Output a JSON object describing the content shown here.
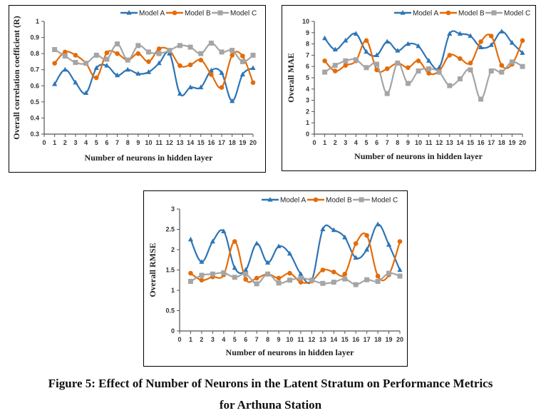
{
  "colors": {
    "model_a": "#2e75b6",
    "model_b": "#e36c0a",
    "model_c": "#a5a5a5"
  },
  "chart_data": [
    {
      "type": "line",
      "title": "",
      "xlabel": "Number of neurons in hidden layer",
      "ylabel": "Overall correlation coefficient (R)",
      "xlim": [
        0,
        20
      ],
      "ylim": [
        0.3,
        1
      ],
      "xticks": [
        "0",
        "1",
        "2",
        "3",
        "4",
        "5",
        "6",
        "7",
        "8",
        "9",
        "10",
        "11",
        "12",
        "13",
        "14",
        "15",
        "16",
        "17",
        "18",
        "19",
        "20"
      ],
      "yticks": [
        "0.3",
        "0.4",
        "0.5",
        "0.6",
        "0.7",
        "0.8",
        "0.9",
        "1"
      ],
      "legend_position": "top-right",
      "grid": false,
      "x": [
        1,
        2,
        3,
        4,
        5,
        6,
        7,
        8,
        9,
        10,
        11,
        12,
        13,
        14,
        15,
        16,
        17,
        18,
        19,
        20
      ],
      "series": [
        {
          "name": "Model A",
          "marker": "triangle",
          "values": [
            0.61,
            0.7,
            0.62,
            0.555,
            0.71,
            0.725,
            0.665,
            0.7,
            0.675,
            0.685,
            0.74,
            0.8,
            0.55,
            0.59,
            0.59,
            0.695,
            0.68,
            0.505,
            0.67,
            0.71
          ]
        },
        {
          "name": "Model B",
          "marker": "circle",
          "values": [
            0.74,
            0.81,
            0.79,
            0.74,
            0.65,
            0.805,
            0.8,
            0.76,
            0.8,
            0.75,
            0.83,
            0.82,
            0.725,
            0.73,
            0.76,
            0.67,
            0.59,
            0.79,
            0.785,
            0.62
          ]
        },
        {
          "name": "Model C",
          "marker": "square",
          "values": [
            0.825,
            0.785,
            0.745,
            0.74,
            0.79,
            0.765,
            0.86,
            0.76,
            0.85,
            0.81,
            0.8,
            0.82,
            0.85,
            0.84,
            0.8,
            0.865,
            0.81,
            0.82,
            0.75,
            0.79
          ]
        }
      ]
    },
    {
      "type": "line",
      "title": "",
      "xlabel": "Number of neurons in hidden layer",
      "ylabel": "Overall MAE",
      "xlim": [
        0,
        20
      ],
      "ylim": [
        0,
        10
      ],
      "xticks": [
        "0",
        "1",
        "2",
        "3",
        "4",
        "5",
        "6",
        "7",
        "8",
        "9",
        "10",
        "11",
        "12",
        "13",
        "14",
        "15",
        "16",
        "17",
        "18",
        "19",
        "20"
      ],
      "yticks": [
        "0",
        "1",
        "2",
        "3",
        "4",
        "5",
        "6",
        "7",
        "8",
        "9",
        "10"
      ],
      "legend_position": "top-right",
      "grid": false,
      "x": [
        1,
        2,
        3,
        4,
        5,
        6,
        7,
        8,
        9,
        10,
        11,
        12,
        13,
        14,
        15,
        16,
        17,
        18,
        19,
        20
      ],
      "series": [
        {
          "name": "Model A",
          "marker": "triangle",
          "values": [
            8.5,
            7.5,
            8.3,
            8.9,
            7.3,
            7.0,
            8.2,
            7.4,
            8.0,
            7.8,
            6.5,
            5.9,
            8.9,
            8.9,
            8.7,
            7.7,
            7.9,
            9.1,
            8.1,
            7.2
          ]
        },
        {
          "name": "Model B",
          "marker": "circle",
          "values": [
            6.5,
            5.6,
            6.1,
            6.5,
            8.3,
            5.7,
            5.8,
            6.3,
            5.9,
            6.5,
            5.4,
            5.6,
            7.0,
            6.7,
            6.3,
            8.2,
            8.7,
            6.1,
            6.2,
            8.3
          ]
        },
        {
          "name": "Model C",
          "marker": "square",
          "values": [
            5.5,
            6.1,
            6.5,
            6.6,
            5.9,
            6.2,
            3.6,
            6.3,
            4.5,
            5.6,
            5.8,
            5.5,
            4.3,
            4.9,
            5.7,
            3.1,
            5.6,
            5.5,
            6.4,
            6.0
          ]
        }
      ]
    },
    {
      "type": "line",
      "title": "",
      "xlabel": "Number of neurons in hidden layer",
      "ylabel": "Overall RMSE",
      "xlim": [
        0,
        20
      ],
      "ylim": [
        0,
        3
      ],
      "xticks": [
        "0",
        "1",
        "2",
        "3",
        "4",
        "5",
        "6",
        "7",
        "8",
        "9",
        "10",
        "11",
        "12",
        "13",
        "14",
        "15",
        "16",
        "17",
        "18",
        "19",
        "20"
      ],
      "yticks": [
        "0",
        "0.5",
        "1",
        "1.5",
        "2",
        "2.5",
        "3"
      ],
      "legend_position": "top-right",
      "grid": false,
      "x": [
        1,
        2,
        3,
        4,
        5,
        6,
        7,
        8,
        9,
        10,
        11,
        12,
        13,
        14,
        15,
        16,
        17,
        18,
        19,
        20
      ],
      "series": [
        {
          "name": "Model A",
          "marker": "triangle",
          "values": [
            2.25,
            1.7,
            2.2,
            2.45,
            1.55,
            1.5,
            2.15,
            1.68,
            2.08,
            1.9,
            1.4,
            1.25,
            2.5,
            2.48,
            2.3,
            1.8,
            2.0,
            2.62,
            2.12,
            1.5
          ]
        },
        {
          "name": "Model B",
          "marker": "circle",
          "values": [
            1.42,
            1.25,
            1.33,
            1.38,
            2.2,
            1.27,
            1.3,
            1.4,
            1.3,
            1.42,
            1.2,
            1.23,
            1.5,
            1.45,
            1.4,
            2.15,
            2.35,
            1.35,
            1.38,
            2.2
          ]
        },
        {
          "name": "Model C",
          "marker": "square",
          "values": [
            1.22,
            1.37,
            1.4,
            1.43,
            1.32,
            1.4,
            1.16,
            1.4,
            1.18,
            1.25,
            1.3,
            1.25,
            1.17,
            1.2,
            1.28,
            1.14,
            1.26,
            1.22,
            1.42,
            1.35
          ]
        }
      ]
    }
  ],
  "caption": {
    "line1": "Figure 5: Effect of Number of Neurons in the Latent Stratum on Performance Metrics",
    "line2": "for Arthuna Station"
  }
}
